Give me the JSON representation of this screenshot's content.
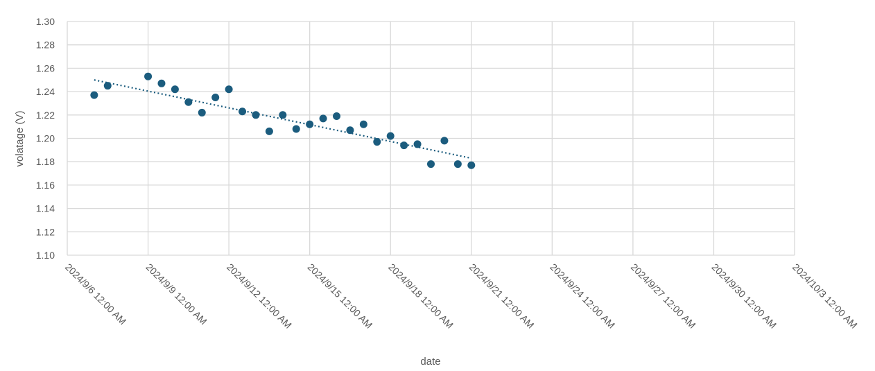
{
  "chart_data": {
    "type": "scatter",
    "title": "",
    "xlabel": "date",
    "ylabel": "volatage (V)",
    "ylim": [
      1.1,
      1.3
    ],
    "ystep": 0.02,
    "xlim": [
      "2024-09-06",
      "2024-10-03"
    ],
    "x_ticks": [
      "2024/9/6 12:00 AM",
      "2024/9/9 12:00 AM",
      "2024/9/12 12:00 AM",
      "2024/9/15 12:00 AM",
      "2024/9/18 12:00 AM",
      "2024/9/21 12:00 AM",
      "2024/9/24 12:00 AM",
      "2024/9/27 12:00 AM",
      "2024/9/30 12:00 AM",
      "2024/10/3 12:00 AM"
    ],
    "y_ticks": [
      "1.10",
      "1.12",
      "1.14",
      "1.16",
      "1.18",
      "1.20",
      "1.22",
      "1.24",
      "1.26",
      "1.28",
      "1.30"
    ],
    "grid": true,
    "legend": "none",
    "colors": {
      "points": "#1b5c7e",
      "trendline": "#1b5c7e",
      "grid": "#d9d9d9"
    },
    "trendline": {
      "style": "dotted",
      "type": "linear",
      "x_start": "2024-09-07",
      "y_start": 1.25,
      "x_end": "2024-09-21",
      "y_end": 1.183
    },
    "series": [
      {
        "x": [
          "2024-09-07",
          "2024-09-07 12:00",
          "2024-09-09",
          "2024-09-09 12:00",
          "2024-09-10",
          "2024-09-10 12:00",
          "2024-09-11",
          "2024-09-11 12:00",
          "2024-09-12",
          "2024-09-12 12:00",
          "2024-09-13",
          "2024-09-13 12:00",
          "2024-09-14",
          "2024-09-14 12:00",
          "2024-09-15",
          "2024-09-15 12:00",
          "2024-09-16",
          "2024-09-16 12:00",
          "2024-09-17",
          "2024-09-17 12:00",
          "2024-09-18",
          "2024-09-18 12:00",
          "2024-09-19",
          "2024-09-19 12:00",
          "2024-09-20",
          "2024-09-20 12:00",
          "2024-09-21"
        ],
        "y": [
          1.237,
          1.245,
          1.253,
          1.247,
          1.242,
          1.231,
          1.222,
          1.235,
          1.242,
          1.223,
          1.22,
          1.206,
          1.22,
          1.208,
          1.212,
          1.217,
          1.219,
          1.207,
          1.212,
          1.197,
          1.202,
          1.194,
          1.195,
          1.178,
          1.198,
          1.178,
          1.177
        ]
      }
    ]
  }
}
